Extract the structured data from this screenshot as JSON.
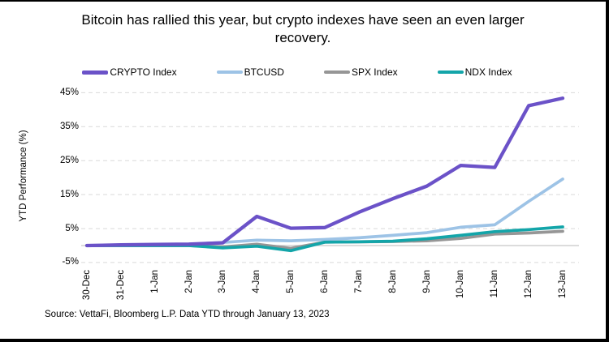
{
  "title": "Bitcoin has rallied this year, but crypto indexes have seen an even larger recovery.",
  "source": "Source: VettaFi, Bloomberg L.P. Data YTD through January 13, 2023",
  "colors": {
    "crypto_purple": "#6B52C8",
    "btc_light_blue": "#9DC3E6",
    "spx_gray": "#969696",
    "ndx_teal": "#13A5A9",
    "gridline": "#D9D9D9",
    "zero_line": "#C6C6C6",
    "border": "#000000",
    "background": "#FFFFFF"
  },
  "chart_data": {
    "type": "line",
    "title": "Bitcoin has rallied this year, but crypto indexes have seen an even larger recovery.",
    "xlabel": "",
    "ylabel": "YTD Performance (%)",
    "grid": "horizontal-dashed",
    "legend_position": "top",
    "ylim": [
      -7,
      48
    ],
    "y_ticks": [
      "45%",
      "35%",
      "25%",
      "15%",
      "5%",
      "-5%"
    ],
    "y_tick_values": [
      45,
      35,
      25,
      15,
      5,
      -5
    ],
    "categories": [
      "30-Dec",
      "31-Dec",
      "1-Jan",
      "2-Jan",
      "3-Jan",
      "4-Jan",
      "5-Jan",
      "6-Jan",
      "7-Jan",
      "8-Jan",
      "9-Jan",
      "10-Jan",
      "11-Jan",
      "12-Jan",
      "13-Jan"
    ],
    "series": [
      {
        "name": "CRYPTO Index",
        "color": "#6B52C8",
        "width": 4.3,
        "values": [
          0,
          0.2,
          0.3,
          0.4,
          0.8,
          8.6,
          5.1,
          5.3,
          9.8,
          13.8,
          17.5,
          23.6,
          23.0,
          41.2,
          43.4
        ]
      },
      {
        "name": "BTCUSD",
        "color": "#9DC3E6",
        "width": 3.7,
        "values": [
          0,
          0.2,
          0.3,
          0.4,
          0.9,
          1.6,
          1.4,
          1.8,
          2.3,
          3.0,
          3.8,
          5.4,
          6.1,
          13.0,
          19.6
        ]
      },
      {
        "name": "SPX Index",
        "color": "#969696",
        "width": 3.7,
        "values": [
          0,
          0,
          0,
          0,
          -0.4,
          0.4,
          -0.8,
          1.0,
          1.1,
          1.2,
          1.4,
          2.1,
          3.4,
          3.7,
          4.2
        ]
      },
      {
        "name": "NDX Index",
        "color": "#13A5A9",
        "width": 3.7,
        "values": [
          0,
          0,
          0,
          0,
          -0.7,
          -0.2,
          -1.5,
          1.0,
          1.1,
          1.3,
          2.0,
          3.0,
          4.1,
          4.7,
          5.5
        ]
      }
    ]
  }
}
